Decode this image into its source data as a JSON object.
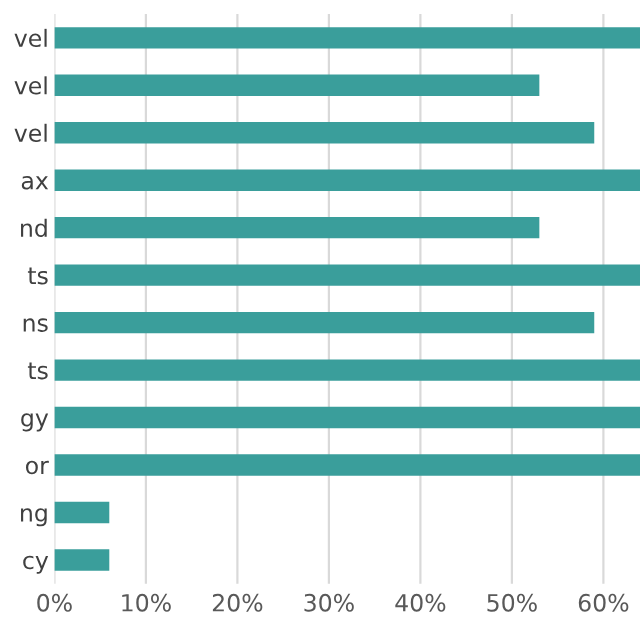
{
  "chart_data": {
    "type": "bar",
    "orientation": "horizontal",
    "categories": [
      "vel",
      "vel",
      "vel",
      "ax",
      "nd",
      "ts",
      "ns",
      "ts",
      "gy",
      "or",
      "ng",
      "cy"
    ],
    "values": [
      64,
      53,
      59,
      64,
      53,
      64,
      59,
      64,
      64,
      64,
      6,
      6
    ],
    "color": "#3a9e9b",
    "xlim": [
      0,
      64
    ],
    "xticks": [
      {
        "value": 0,
        "label": "0%"
      },
      {
        "value": 10,
        "label": "10%"
      },
      {
        "value": 20,
        "label": "20%"
      },
      {
        "value": 30,
        "label": "30%"
      },
      {
        "value": 40,
        "label": "40%"
      },
      {
        "value": 50,
        "label": "50%"
      },
      {
        "value": 60,
        "label": "60%"
      }
    ],
    "grid": "x"
  }
}
